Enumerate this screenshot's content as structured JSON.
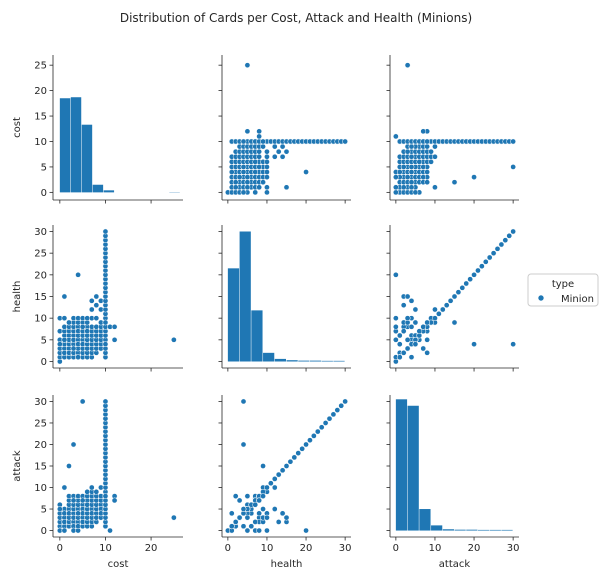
{
  "chart_data": {
    "type": "scatter",
    "subtype": "pairplot",
    "title": "Distribution of Cards per Cost, Attack and Health (Minions)",
    "variables": [
      "cost",
      "health",
      "attack"
    ],
    "axis_ranges": {
      "cost": [
        -1.5,
        27
      ],
      "health": [
        -1.5,
        31.5
      ],
      "attack": [
        -1.5,
        31.5
      ]
    },
    "ticks": {
      "cost": [
        0,
        5,
        10,
        15,
        20,
        25
      ],
      "health": [
        0,
        5,
        10,
        15,
        20,
        25,
        30
      ],
      "attack": [
        0,
        5,
        10,
        15,
        20,
        25,
        30
      ]
    },
    "bottom_ticks": {
      "cost": [
        0,
        10,
        20
      ],
      "health": [
        0,
        10,
        20,
        30
      ],
      "attack": [
        0,
        10,
        20,
        30
      ]
    },
    "grid": false,
    "color": "#1f77b4",
    "legend": {
      "title": "type",
      "entries": [
        {
          "name": "Minion",
          "color": "#1f77b4"
        }
      ],
      "placement": "right"
    },
    "histograms": {
      "cost": {
        "bins": [
          [
            0,
            2.4
          ],
          [
            2.4,
            4.8
          ],
          [
            4.8,
            7.2
          ],
          [
            7.2,
            9.6
          ],
          [
            9.6,
            12
          ],
          [
            12,
            14.4
          ],
          [
            14.4,
            16.8
          ],
          [
            16.8,
            19.2
          ],
          [
            19.2,
            21.6
          ],
          [
            21.6,
            24
          ],
          [
            24,
            26.4
          ]
        ],
        "counts": [
          18.5,
          18.7,
          13.3,
          1.5,
          0.4,
          0,
          0,
          0,
          0,
          0,
          0.05
        ],
        "ylim": [
          -1.5,
          27
        ]
      },
      "health": {
        "bins": [
          [
            0,
            3
          ],
          [
            3,
            6
          ],
          [
            6,
            9
          ],
          [
            9,
            12
          ],
          [
            12,
            15
          ],
          [
            15,
            18
          ],
          [
            18,
            21
          ],
          [
            21,
            24
          ],
          [
            24,
            27
          ],
          [
            27,
            30
          ]
        ],
        "counts": [
          21.5,
          30,
          11.8,
          2,
          0.6,
          0.3,
          0.2,
          0.2,
          0.15,
          0.15
        ],
        "ylim": [
          -1.5,
          31.5
        ]
      },
      "attack": {
        "bins": [
          [
            0,
            3
          ],
          [
            3,
            6
          ],
          [
            6,
            9
          ],
          [
            9,
            12
          ],
          [
            12,
            15
          ],
          [
            15,
            18
          ],
          [
            18,
            21
          ],
          [
            21,
            24
          ],
          [
            24,
            27
          ],
          [
            27,
            30
          ]
        ],
        "counts": [
          30.5,
          29,
          5,
          1.2,
          0.3,
          0.2,
          0.2,
          0.15,
          0.15,
          0.15
        ],
        "ylim": [
          -1.5,
          31.5
        ]
      }
    },
    "points": {
      "cost": [
        0,
        0,
        0,
        0,
        0,
        0,
        0,
        0,
        1,
        1,
        1,
        1,
        1,
        1,
        1,
        1,
        1,
        1,
        1,
        1,
        1,
        2,
        2,
        2,
        2,
        2,
        2,
        2,
        2,
        2,
        2,
        2,
        3,
        3,
        3,
        3,
        3,
        3,
        3,
        3,
        3,
        3,
        3,
        3,
        3,
        4,
        4,
        4,
        4,
        4,
        4,
        4,
        4,
        4,
        4,
        4,
        4,
        4,
        5,
        5,
        5,
        5,
        5,
        5,
        5,
        5,
        5,
        5,
        5,
        5,
        5,
        6,
        6,
        6,
        6,
        6,
        6,
        6,
        6,
        6,
        6,
        6,
        6,
        6,
        7,
        7,
        7,
        7,
        7,
        7,
        7,
        7,
        7,
        7,
        7,
        8,
        8,
        8,
        8,
        8,
        8,
        8,
        8,
        8,
        8,
        9,
        9,
        9,
        9,
        9,
        9,
        9,
        9,
        9,
        10,
        10,
        10,
        10,
        10,
        10,
        10,
        10,
        10,
        10,
        10,
        10,
        10,
        10,
        10,
        10,
        10,
        10,
        10,
        10,
        10,
        10,
        10,
        10,
        10,
        10,
        10,
        10,
        10,
        10,
        10,
        10,
        10,
        10,
        11,
        12,
        12,
        2,
        4,
        5,
        3,
        25,
        1,
        0
      ],
      "health": [
        0,
        1,
        2,
        3,
        4,
        5,
        7,
        10,
        1,
        2,
        3,
        4,
        5,
        6,
        7,
        8,
        1,
        2,
        10,
        15,
        8,
        1,
        2,
        3,
        4,
        5,
        6,
        7,
        8,
        9,
        2,
        5,
        1,
        2,
        3,
        4,
        5,
        6,
        7,
        8,
        9,
        10,
        2,
        4,
        5,
        1,
        2,
        3,
        4,
        5,
        6,
        7,
        8,
        9,
        10,
        20,
        4,
        7,
        1,
        2,
        3,
        4,
        5,
        6,
        7,
        8,
        9,
        10,
        4,
        6,
        7,
        1,
        2,
        3,
        4,
        5,
        6,
        7,
        8,
        9,
        10,
        5,
        6,
        7,
        1,
        2,
        3,
        4,
        5,
        6,
        7,
        8,
        10,
        12,
        14,
        2,
        3,
        4,
        5,
        6,
        7,
        8,
        10,
        13,
        15,
        3,
        4,
        5,
        6,
        7,
        8,
        9,
        12,
        14,
        1,
        2,
        3,
        4,
        5,
        6,
        7,
        8,
        9,
        10,
        11,
        12,
        13,
        14,
        15,
        16,
        17,
        18,
        19,
        20,
        21,
        22,
        23,
        24,
        25,
        26,
        27,
        28,
        29,
        30,
        4,
        7,
        8,
        9,
        8,
        5,
        8,
        9,
        1,
        8,
        3,
        5,
        5,
        4
      ],
      "attack": [
        0,
        1,
        2,
        3,
        4,
        6,
        0,
        0,
        1,
        2,
        3,
        4,
        5,
        1,
        2,
        3,
        0,
        1,
        10,
        2,
        4,
        1,
        2,
        3,
        4,
        5,
        6,
        7,
        2,
        3,
        8,
        4,
        1,
        2,
        3,
        4,
        5,
        6,
        7,
        8,
        2,
        3,
        1,
        20,
        0,
        1,
        2,
        3,
        4,
        5,
        6,
        7,
        8,
        3,
        4,
        0,
        1,
        8,
        1,
        2,
        3,
        4,
        5,
        6,
        7,
        8,
        5,
        3,
        30,
        4,
        2,
        1,
        2,
        3,
        4,
        5,
        6,
        7,
        8,
        9,
        3,
        4,
        5,
        6,
        1,
        2,
        3,
        4,
        5,
        6,
        7,
        8,
        9,
        10,
        4,
        2,
        3,
        4,
        5,
        6,
        7,
        8,
        9,
        2,
        3,
        3,
        4,
        5,
        6,
        7,
        8,
        10,
        5,
        4,
        1,
        2,
        3,
        4,
        5,
        6,
        7,
        8,
        9,
        10,
        11,
        12,
        13,
        14,
        15,
        16,
        17,
        18,
        19,
        20,
        21,
        22,
        23,
        24,
        25,
        26,
        27,
        28,
        29,
        30,
        5,
        6,
        7,
        8,
        0,
        8,
        7,
        15,
        4,
        7,
        7,
        3,
        0,
        5
      ]
    }
  }
}
